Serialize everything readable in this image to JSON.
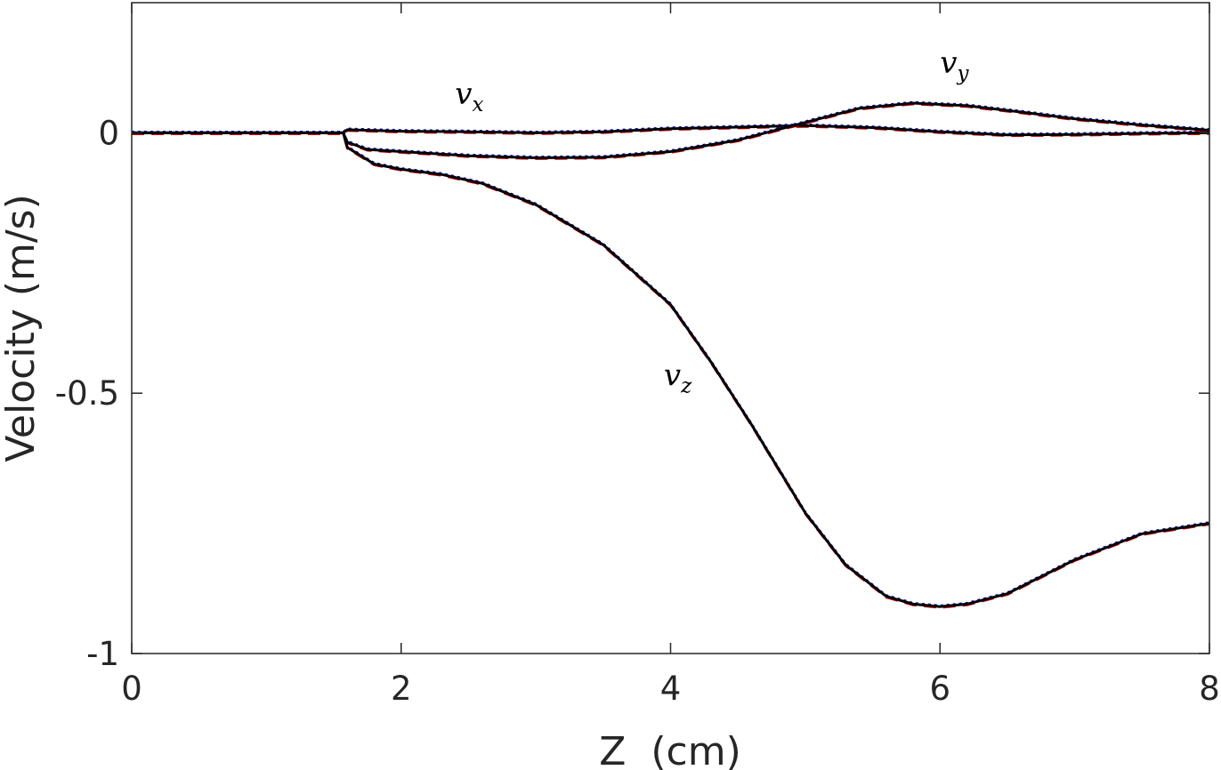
{
  "chart_data": {
    "type": "line",
    "xlabel": "Z  (cm)",
    "ylabel": "Velocity (m/s)",
    "xlim": [
      0,
      8
    ],
    "ylim": [
      -1,
      0.25
    ],
    "xticks": [
      0,
      2,
      4,
      6,
      8
    ],
    "xtick_labels": [
      "0",
      "2",
      "4",
      "6",
      "8"
    ],
    "yticks": [
      -1,
      -0.5,
      0
    ],
    "ytick_labels": [
      "-1",
      "-0.5",
      "0"
    ],
    "grid": false,
    "legend": "none",
    "annotations": [
      {
        "base": "v",
        "sub": "x",
        "x": 2.4,
        "y": 0.055
      },
      {
        "base": "v",
        "sub": "y",
        "x": 6.0,
        "y": 0.115
      },
      {
        "base": "v",
        "sub": "z",
        "x": 3.95,
        "y": -0.485
      }
    ],
    "styles": [
      {
        "color": "#000000",
        "dash": "solid"
      },
      {
        "color": "#cc0000",
        "dash": "dashed"
      },
      {
        "color": "#0000cc",
        "dash": "dotted"
      }
    ],
    "series": [
      {
        "label": "v_x",
        "x": [
          0,
          1.57,
          1.6,
          2.0,
          2.5,
          3.0,
          3.5,
          4.0,
          4.5,
          5.0,
          5.5,
          6.0,
          6.5,
          7.0,
          7.5,
          8.0
        ],
        "y": [
          0,
          0,
          0.006,
          0.003,
          0.002,
          0.0,
          0.002,
          0.008,
          0.011,
          0.014,
          0.01,
          0.002,
          -0.004,
          -0.003,
          -0.001,
          0.0
        ]
      },
      {
        "label": "v_y",
        "x": [
          0,
          1.57,
          1.6,
          1.75,
          2.0,
          2.5,
          3.0,
          3.5,
          4.0,
          4.5,
          5.0,
          5.4,
          5.8,
          6.2,
          6.6,
          7.0,
          7.5,
          8.0
        ],
        "y": [
          0,
          0,
          -0.018,
          -0.032,
          -0.036,
          -0.044,
          -0.048,
          -0.047,
          -0.036,
          -0.014,
          0.02,
          0.047,
          0.057,
          0.052,
          0.04,
          0.027,
          0.015,
          0.005
        ]
      },
      {
        "label": "v_z",
        "x": [
          0,
          1.57,
          1.6,
          1.8,
          2.0,
          2.3,
          2.6,
          3.0,
          3.5,
          4.0,
          4.3,
          4.6,
          5.0,
          5.3,
          5.6,
          5.8,
          6.0,
          6.2,
          6.5,
          7.0,
          7.5,
          8.0
        ],
        "y": [
          0,
          0,
          -0.028,
          -0.06,
          -0.07,
          -0.08,
          -0.097,
          -0.138,
          -0.215,
          -0.33,
          -0.44,
          -0.56,
          -0.73,
          -0.83,
          -0.89,
          -0.905,
          -0.91,
          -0.905,
          -0.885,
          -0.82,
          -0.77,
          -0.75
        ]
      }
    ]
  }
}
